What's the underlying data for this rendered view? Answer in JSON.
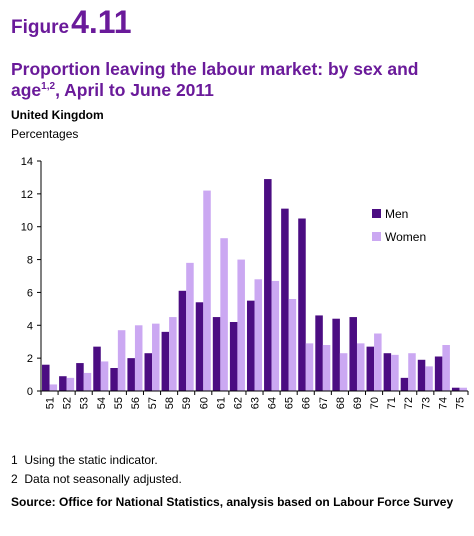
{
  "figure": {
    "word": "Figure",
    "number": "4.11"
  },
  "title": {
    "main": "Proportion leaving the labour market: by sex and age",
    "sup": "1,2",
    "rest": ", April to June 2011"
  },
  "region": "United Kingdom",
  "units": "Percentages",
  "footnotes": [
    {
      "num": "1",
      "text": "Using the static indicator."
    },
    {
      "num": "2",
      "text": "Data not seasonally adjusted."
    }
  ],
  "source": "Source: Office for National Statistics, analysis based on Labour Force Survey",
  "colors": {
    "men": "#4b0d82",
    "women": "#cba8f2",
    "title": "#6a1a9a"
  },
  "chart_data": {
    "type": "bar",
    "categories": [
      "51",
      "52",
      "53",
      "54",
      "55",
      "56",
      "57",
      "58",
      "59",
      "60",
      "61",
      "62",
      "63",
      "64",
      "65",
      "66",
      "67",
      "68",
      "69",
      "70",
      "71",
      "72",
      "73",
      "74",
      "75"
    ],
    "series": [
      {
        "name": "Men",
        "values": [
          1.6,
          0.9,
          1.7,
          2.7,
          1.4,
          2.0,
          2.3,
          3.6,
          6.1,
          5.4,
          4.5,
          4.2,
          5.5,
          12.9,
          11.1,
          10.5,
          4.6,
          4.4,
          4.5,
          2.7,
          2.3,
          0.8,
          1.9,
          2.1,
          0.2
        ]
      },
      {
        "name": "Women",
        "values": [
          0.4,
          0.8,
          1.1,
          1.8,
          3.7,
          4.0,
          4.1,
          4.5,
          7.8,
          12.2,
          9.3,
          8.0,
          6.8,
          6.7,
          5.6,
          2.9,
          2.8,
          2.3,
          2.9,
          3.5,
          2.2,
          2.3,
          1.5,
          2.8,
          0.2
        ]
      }
    ],
    "yticks": [
      "0",
      "2",
      "4",
      "6",
      "8",
      "10",
      "12",
      "14"
    ],
    "ylim": [
      0,
      14
    ],
    "grid": false,
    "legend": "top-right"
  }
}
